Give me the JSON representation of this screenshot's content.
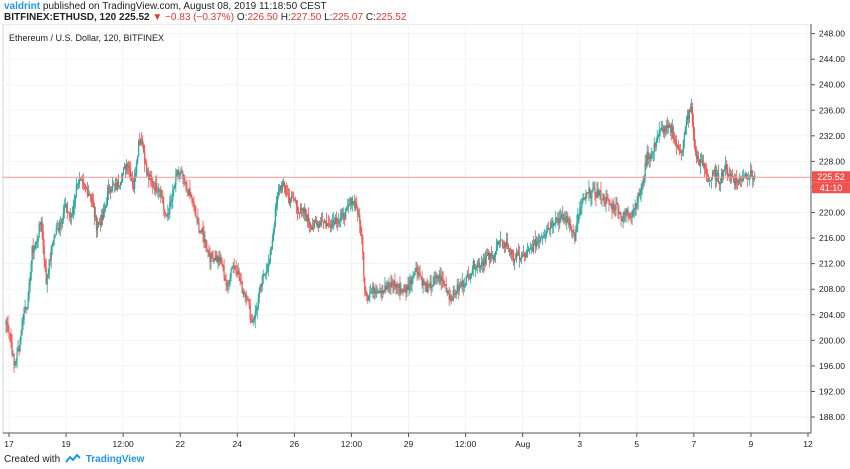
{
  "header": {
    "author": "valdrint",
    "published": "published on TradingView.com, August 08, 2019 11:18:50 CEST",
    "symbol": "BITFINEX:ETHUSD, 120",
    "last": "225.52",
    "change": "−0.83 (−0.37%)",
    "ohlc": {
      "o_label": "O:",
      "o": "226.50",
      "h_label": "H:",
      "h": "227.50",
      "l_label": "L:",
      "l": "225.07",
      "c_label": "C:",
      "c": "225.52"
    }
  },
  "footer": {
    "created_with": "Created with",
    "brand": "TradingView"
  },
  "colors": {
    "up": "#26a69a",
    "down": "#ef5350",
    "price_line": "#ef9a9a",
    "price_label": "#ef5350",
    "grid": "#f0f3fa"
  },
  "chart_data": {
    "type": "candlestick",
    "title": "Ethereum / U.S. Dollar, 120, BITFINEX",
    "y_ticks": [
      "188.00",
      "192.00",
      "196.00",
      "200.00",
      "204.00",
      "208.00",
      "212.00",
      "216.00",
      "220.00",
      "224.00",
      "228.00",
      "232.00",
      "236.00",
      "240.00",
      "244.00",
      "248.00"
    ],
    "ylim": [
      185.5,
      249.5
    ],
    "x_ticks": [
      "17",
      "19",
      "12:00",
      "22",
      "24",
      "26",
      "12:00",
      "29",
      "12:00",
      "Aug",
      "3",
      "5",
      "7",
      "9",
      "12"
    ],
    "grid": true,
    "last_price": 225.52,
    "last_price_label": "225.52",
    "countdown_label": "41:10",
    "anchor_closes": [
      [
        0,
        203
      ],
      [
        4,
        201
      ],
      [
        8,
        196
      ],
      [
        13,
        199
      ],
      [
        18,
        205
      ],
      [
        22,
        206
      ],
      [
        26,
        214
      ],
      [
        30,
        215
      ],
      [
        35,
        219
      ],
      [
        40,
        209
      ],
      [
        47,
        216
      ],
      [
        53,
        218
      ],
      [
        59,
        221
      ],
      [
        65,
        219
      ],
      [
        71,
        225
      ],
      [
        77,
        224
      ],
      [
        84,
        223
      ],
      [
        90,
        218
      ],
      [
        96,
        219
      ],
      [
        103,
        224
      ],
      [
        110,
        224
      ],
      [
        116,
        226
      ],
      [
        121,
        228
      ],
      [
        127,
        224
      ],
      [
        132,
        231
      ],
      [
        135,
        232
      ],
      [
        140,
        226
      ],
      [
        147,
        224
      ],
      [
        153,
        224
      ],
      [
        159,
        219
      ],
      [
        165,
        222
      ],
      [
        170,
        226
      ],
      [
        174,
        226
      ],
      [
        179,
        224
      ],
      [
        185,
        222
      ],
      [
        191,
        218
      ],
      [
        197,
        216
      ],
      [
        203,
        213
      ],
      [
        209,
        213
      ],
      [
        215,
        212
      ],
      [
        220,
        208
      ],
      [
        225,
        212
      ],
      [
        230,
        211
      ],
      [
        235,
        208
      ],
      [
        240,
        207
      ],
      [
        244,
        203
      ],
      [
        248,
        204
      ],
      [
        253,
        208
      ],
      [
        258,
        211
      ],
      [
        262,
        212
      ],
      [
        265,
        216
      ],
      [
        268,
        220
      ],
      [
        272,
        224
      ],
      [
        277,
        224
      ],
      [
        282,
        222
      ],
      [
        287,
        222
      ],
      [
        292,
        220
      ],
      [
        297,
        220
      ],
      [
        303,
        218
      ],
      [
        309,
        218
      ],
      [
        315,
        219
      ],
      [
        321,
        218
      ],
      [
        327,
        219
      ],
      [
        333,
        219
      ],
      [
        339,
        220
      ],
      [
        344,
        222
      ],
      [
        349,
        221
      ],
      [
        352,
        218
      ],
      [
        354,
        216
      ],
      [
        357,
        208
      ],
      [
        360,
        207
      ],
      [
        366,
        208
      ],
      [
        372,
        208
      ],
      [
        378,
        208
      ],
      [
        385,
        209
      ],
      [
        392,
        208
      ],
      [
        398,
        208
      ],
      [
        402,
        209
      ],
      [
        406,
        211
      ],
      [
        410,
        211
      ],
      [
        415,
        209
      ],
      [
        420,
        208
      ],
      [
        425,
        209
      ],
      [
        430,
        210
      ],
      [
        436,
        209
      ],
      [
        441,
        207
      ],
      [
        445,
        207
      ],
      [
        449,
        208
      ],
      [
        455,
        209
      ],
      [
        460,
        210
      ],
      [
        466,
        212
      ],
      [
        472,
        212
      ],
      [
        478,
        213
      ],
      [
        484,
        213
      ],
      [
        489,
        215
      ],
      [
        494,
        215
      ],
      [
        499,
        215
      ],
      [
        504,
        213
      ],
      [
        510,
        213
      ],
      [
        515,
        213
      ],
      [
        521,
        214
      ],
      [
        526,
        215
      ],
      [
        531,
        216
      ],
      [
        536,
        217
      ],
      [
        541,
        218
      ],
      [
        546,
        219
      ],
      [
        551,
        219
      ],
      [
        557,
        219
      ],
      [
        562,
        218
      ],
      [
        566,
        216
      ],
      [
        570,
        220
      ],
      [
        575,
        222
      ],
      [
        580,
        223
      ],
      [
        585,
        223
      ],
      [
        590,
        223
      ],
      [
        596,
        222
      ],
      [
        602,
        221
      ],
      [
        608,
        221
      ],
      [
        613,
        219
      ],
      [
        618,
        220
      ],
      [
        623,
        220
      ],
      [
        628,
        222
      ],
      [
        633,
        224
      ],
      [
        638,
        229
      ],
      [
        643,
        229
      ],
      [
        648,
        232
      ],
      [
        653,
        233
      ],
      [
        658,
        233
      ],
      [
        663,
        233
      ],
      [
        668,
        230
      ],
      [
        673,
        230
      ],
      [
        678,
        235
      ],
      [
        682,
        236
      ],
      [
        686,
        229
      ],
      [
        690,
        228
      ],
      [
        695,
        227
      ],
      [
        700,
        225
      ],
      [
        705,
        226
      ],
      [
        710,
        225
      ],
      [
        715,
        227
      ],
      [
        720,
        226
      ],
      [
        725,
        225
      ],
      [
        730,
        225
      ],
      [
        735,
        226
      ],
      [
        740,
        226
      ],
      [
        745,
        225.5
      ]
    ]
  }
}
